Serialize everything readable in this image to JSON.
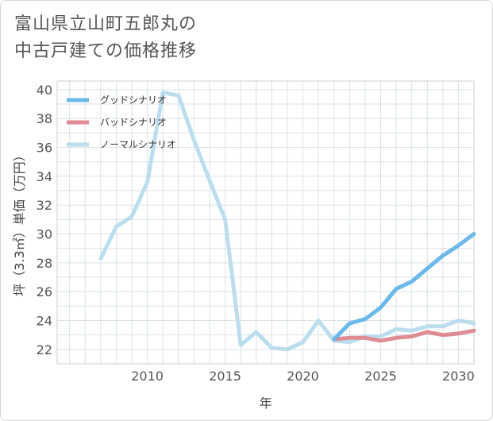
{
  "header": {
    "title_line1": "富山県立山町五郎丸の",
    "title_line2": "中古戸建ての価格推移"
  },
  "chart_data": {
    "type": "line",
    "title": "富山県立山町五郎丸の中古戸建ての価格推移",
    "xlabel": "年",
    "ylabel": "坪（3.3㎡）単価（万円）",
    "xlim": [
      2004.2,
      2031
    ],
    "ylim": [
      21,
      40.6
    ],
    "x_ticks": [
      2010,
      2015,
      2020,
      2025,
      2030
    ],
    "y_ticks": [
      22,
      24,
      26,
      28,
      30,
      32,
      34,
      36,
      38,
      40
    ],
    "grid": true,
    "legend_position": "top-left",
    "series": [
      {
        "name": "グッドシナリオ",
        "color": "#6cb8ea",
        "x": [
          2022,
          2023,
          2024,
          2025,
          2026,
          2027,
          2028,
          2029,
          2030,
          2031
        ],
        "y": [
          22.7,
          23.8,
          24.1,
          24.9,
          26.2,
          26.7,
          27.6,
          28.5,
          29.2,
          30.0
        ]
      },
      {
        "name": "バッドシナリオ",
        "color": "#e08c94",
        "x": [
          2022,
          2023,
          2024,
          2025,
          2026,
          2027,
          2028,
          2029,
          2030,
          2031
        ],
        "y": [
          22.7,
          22.8,
          22.8,
          22.6,
          22.8,
          22.9,
          23.2,
          23.0,
          23.1,
          23.3
        ]
      },
      {
        "name": "ノーマルシナリオ",
        "color": "#bcdded",
        "x": [
          2007,
          2008,
          2009,
          2010,
          2011,
          2012,
          2013,
          2014,
          2015,
          2016,
          2017,
          2018,
          2019,
          2020,
          2021,
          2022,
          2023,
          2024,
          2025,
          2026,
          2027,
          2028,
          2029,
          2030,
          2031
        ],
        "y": [
          28.3,
          30.5,
          31.2,
          33.6,
          39.8,
          39.6,
          36.5,
          33.7,
          31.0,
          22.3,
          23.2,
          22.1,
          22.0,
          22.5,
          24.0,
          22.6,
          22.5,
          22.9,
          22.9,
          23.4,
          23.3,
          23.6,
          23.6,
          24.0,
          23.8
        ]
      }
    ]
  }
}
